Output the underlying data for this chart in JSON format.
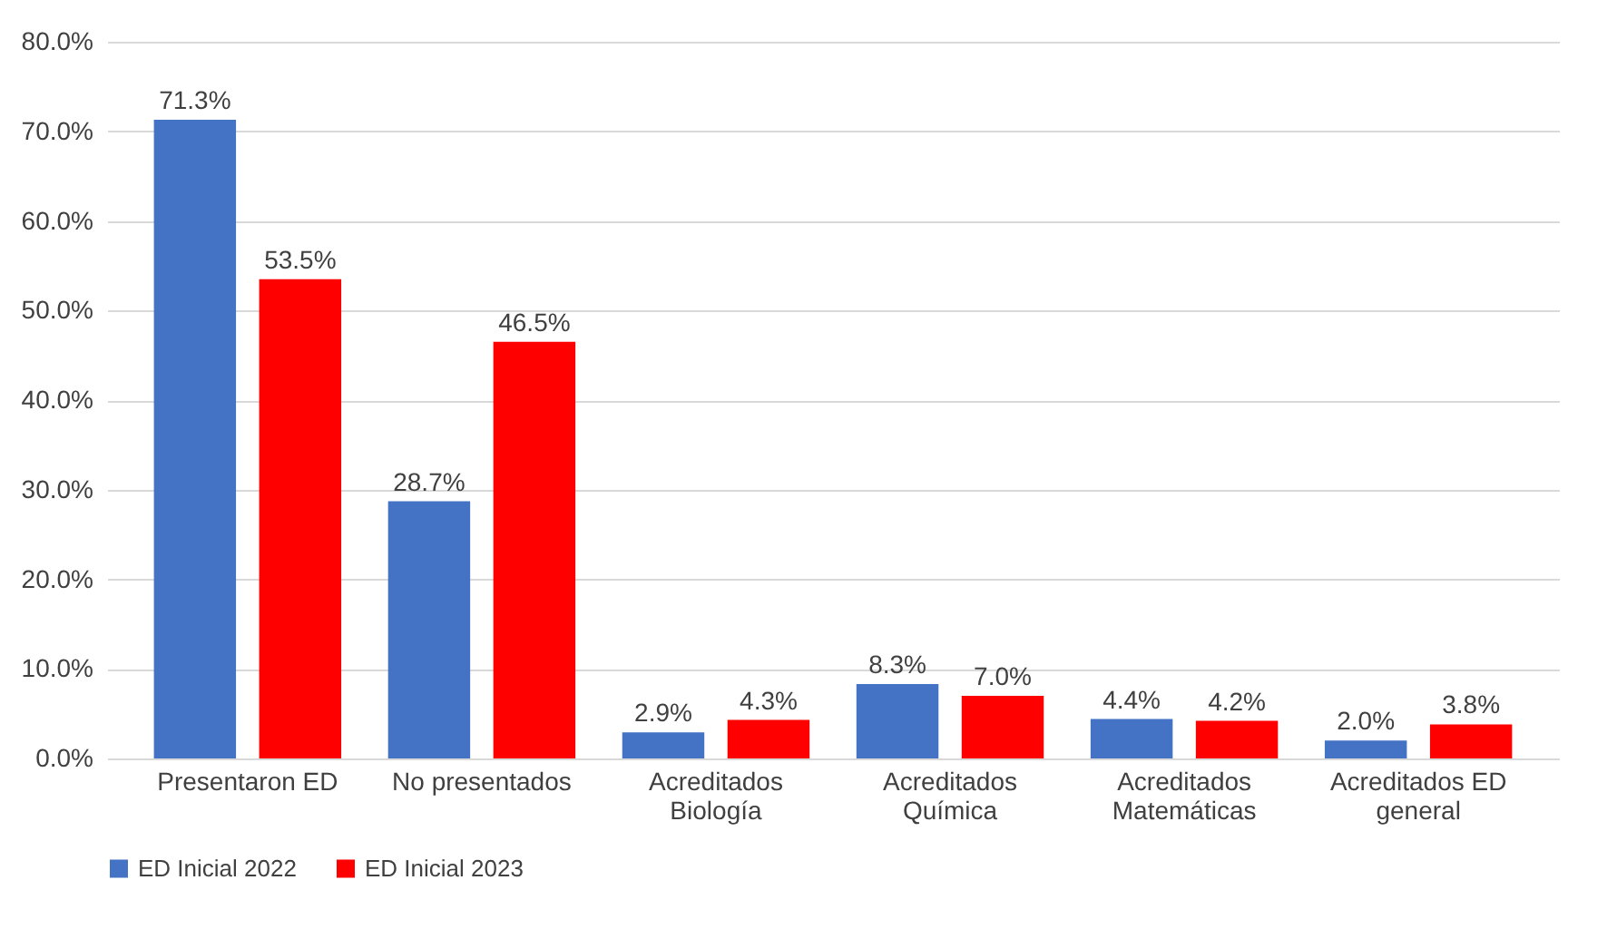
{
  "chart_data": {
    "type": "bar",
    "categories": [
      "Presentaron ED",
      "No presentados",
      "Acreditados Biología",
      "Acreditados Química",
      "Acreditados Matemáticas",
      "Acreditados ED general"
    ],
    "series": [
      {
        "name": "ED Inicial 2022",
        "color": "#4472c4",
        "values": [
          71.3,
          28.7,
          2.9,
          8.3,
          4.4,
          2.0
        ],
        "value_labels": [
          "71.3%",
          "28.7%",
          "2.9%",
          "8.3%",
          "4.4%",
          "2.0%"
        ]
      },
      {
        "name": "ED Inicial 2023",
        "color": "#ff0000",
        "values": [
          53.5,
          46.5,
          4.3,
          7.0,
          4.2,
          3.8
        ],
        "value_labels": [
          "53.5%",
          "46.5%",
          "4.3%",
          "7.0%",
          "4.2%",
          "3.8%"
        ]
      }
    ],
    "ylim": [
      0,
      80
    ],
    "yticks": [
      {
        "value": 0,
        "label": "0.0%"
      },
      {
        "value": 10,
        "label": "10.0%"
      },
      {
        "value": 20,
        "label": "20.0%"
      },
      {
        "value": 30,
        "label": "30.0%"
      },
      {
        "value": 40,
        "label": "40.0%"
      },
      {
        "value": 50,
        "label": "50.0%"
      },
      {
        "value": 60,
        "label": "60.0%"
      },
      {
        "value": 70,
        "label": "70.0%"
      },
      {
        "value": 80,
        "label": "80.0%"
      }
    ],
    "grid": "y",
    "legend": "bottom"
  }
}
